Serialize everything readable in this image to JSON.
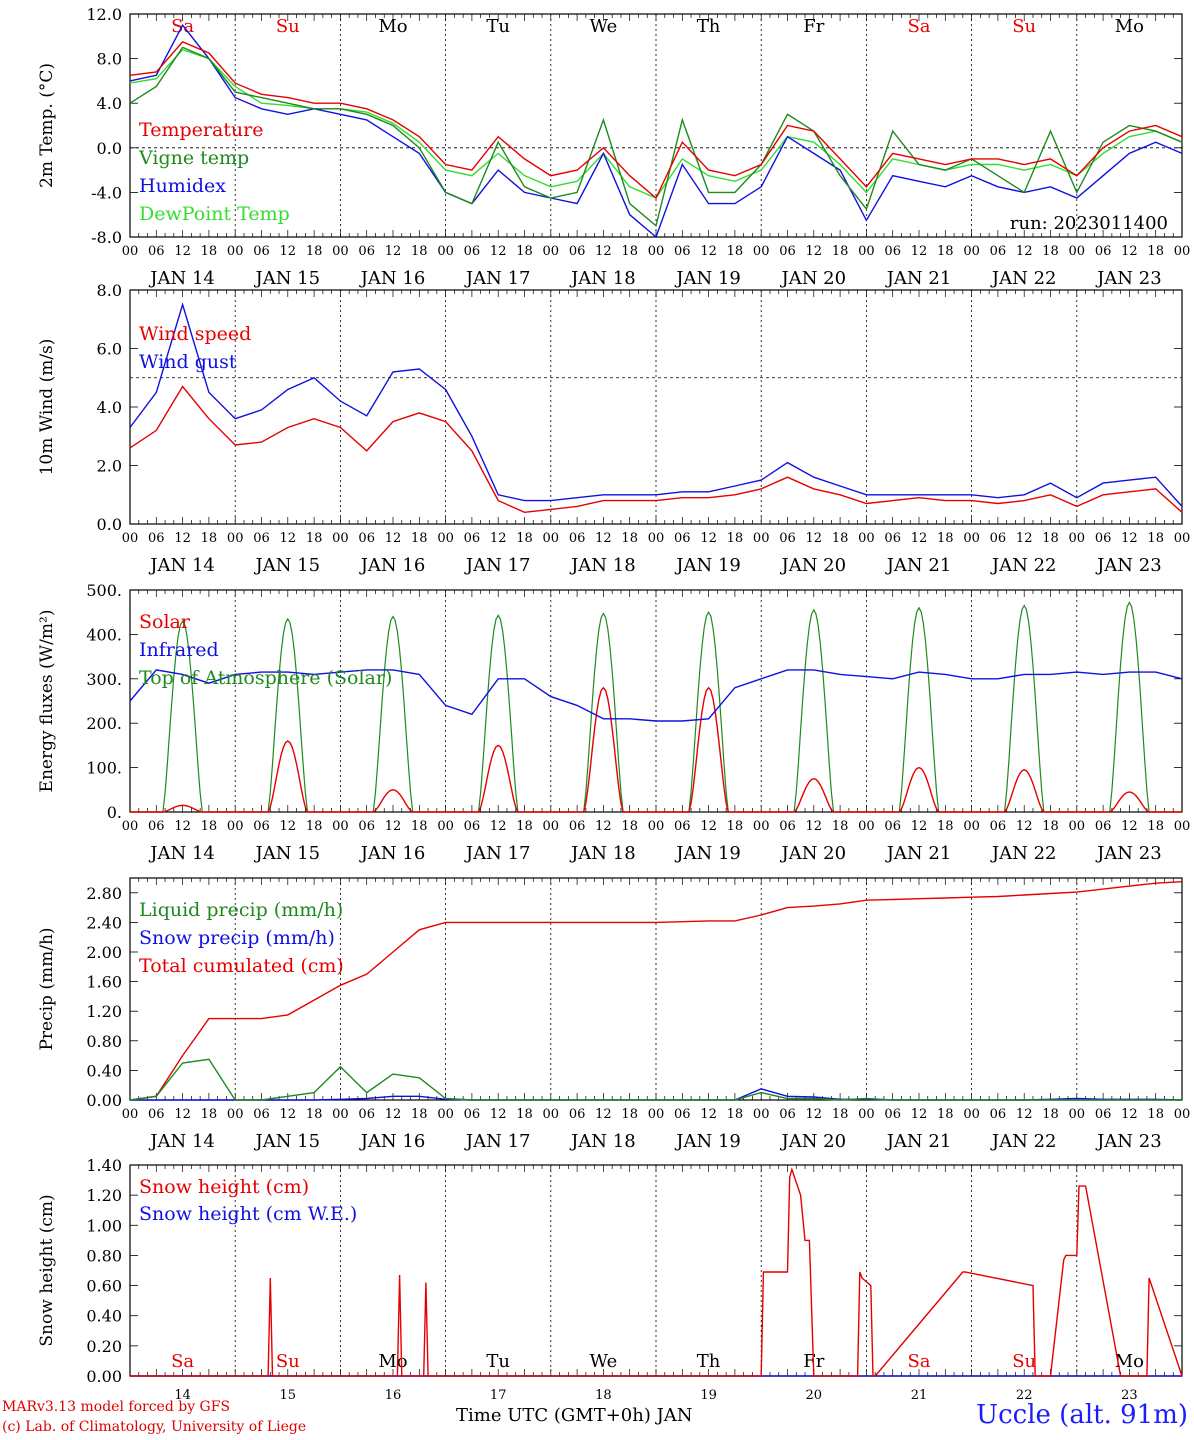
{
  "colors": {
    "red": "#e60000",
    "green": "#1e8a1e",
    "blue": "#1010e0",
    "lightgreen": "#33dd33",
    "weekend": "#e60000",
    "axis": "#000000"
  },
  "days": {
    "weekday_labels": [
      "Sa",
      "Su",
      "Mo",
      "Tu",
      "We",
      "Th",
      "Fr",
      "Sa",
      "Su",
      "Mo"
    ],
    "weekend_flags": [
      true,
      true,
      false,
      false,
      false,
      false,
      false,
      true,
      true,
      false
    ],
    "date_labels": [
      "JAN 14",
      "JAN 15",
      "JAN 16",
      "JAN 17",
      "JAN 18",
      "JAN 19",
      "JAN 20",
      "JAN 21",
      "JAN 22",
      "JAN 23"
    ],
    "hour_labels": [
      "00",
      "06",
      "12",
      "18"
    ],
    "end_hour_label": "00",
    "bottom_day_numbers": [
      "14",
      "15",
      "16",
      "17",
      "18",
      "19",
      "20",
      "21",
      "22",
      "23"
    ]
  },
  "footer": {
    "credit_line1": "MARv3.13 model forced by GFS",
    "credit_line2": "(c) Lab. of Climatology, University of Liege",
    "x_axis_title": "Time UTC (GMT+0h) JAN",
    "station": "Uccle (alt. 91m)"
  },
  "chart_data": [
    {
      "type": "line",
      "ylabel": "2m Temp. (°C)",
      "ylim": [
        -8,
        12
      ],
      "yticks": [
        "12.0",
        "8.0",
        "4.0",
        "0.0",
        "-4.0",
        "-8.0"
      ],
      "ytick_values": [
        12,
        8,
        4,
        0,
        -4,
        -8
      ],
      "hline": 0,
      "run_label": "run: 2023011400",
      "x_hours": [
        0,
        6,
        12,
        18,
        24,
        30,
        36,
        42,
        48,
        54,
        60,
        66,
        72,
        78,
        84,
        90,
        96,
        102,
        108,
        114,
        120,
        126,
        132,
        138,
        144,
        150,
        156,
        162,
        168,
        174,
        180,
        186,
        192,
        198,
        204,
        210,
        216,
        222,
        228,
        234,
        240
      ],
      "series": [
        {
          "name": "Temperature",
          "color": "#e60000",
          "values": [
            6.5,
            6.8,
            9.5,
            8.5,
            5.8,
            4.8,
            4.5,
            4.0,
            4.0,
            3.5,
            2.5,
            1.0,
            -1.5,
            -2.0,
            1.0,
            -1.0,
            -2.5,
            -2.0,
            0.0,
            -2.5,
            -4.5,
            0.5,
            -2.0,
            -2.5,
            -1.5,
            2.0,
            1.5,
            -1.0,
            -3.5,
            -0.5,
            -1.0,
            -1.5,
            -1.0,
            -1.0,
            -1.5,
            -1.0,
            -2.5,
            0.0,
            1.5,
            2.0,
            1.0
          ]
        },
        {
          "name": "Vigne temp",
          "color": "#1e8a1e",
          "values": [
            4.0,
            5.5,
            9.0,
            8.0,
            5.0,
            4.5,
            4.0,
            3.5,
            3.5,
            3.0,
            2.0,
            0.0,
            -4.0,
            -5.0,
            0.5,
            -3.5,
            -4.5,
            -4.0,
            2.5,
            -5.0,
            -7.0,
            2.5,
            -4.0,
            -4.0,
            -1.5,
            3.0,
            1.5,
            -2.5,
            -5.5,
            1.5,
            -1.5,
            -2.0,
            -1.0,
            -2.5,
            -4.0,
            1.5,
            -4.0,
            0.5,
            2.0,
            1.5,
            0.5
          ]
        },
        {
          "name": "Humidex",
          "color": "#1010e0",
          "values": [
            6.0,
            6.5,
            11.0,
            8.0,
            4.5,
            3.5,
            3.0,
            3.5,
            3.0,
            2.5,
            1.0,
            -0.5,
            -4.0,
            -5.0,
            -2.0,
            -4.0,
            -4.5,
            -5.0,
            -0.5,
            -6.0,
            -8.0,
            -1.5,
            -5.0,
            -5.0,
            -3.5,
            1.0,
            -0.5,
            -2.0,
            -6.5,
            -2.5,
            -3.0,
            -3.5,
            -2.5,
            -3.5,
            -4.0,
            -3.5,
            -4.5,
            -2.5,
            -0.5,
            0.5,
            -0.5
          ]
        },
        {
          "name": "DewPoint Temp",
          "color": "#33dd33",
          "values": [
            5.8,
            6.2,
            8.8,
            8.0,
            5.5,
            4.0,
            3.8,
            3.5,
            3.5,
            3.2,
            2.2,
            0.5,
            -2.0,
            -2.5,
            -0.5,
            -2.5,
            -3.5,
            -3.0,
            -0.5,
            -3.5,
            -4.5,
            -1.0,
            -2.5,
            -3.0,
            -2.0,
            1.0,
            0.5,
            -1.5,
            -4.0,
            -1.0,
            -1.5,
            -2.0,
            -1.5,
            -1.5,
            -2.0,
            -1.5,
            -2.5,
            -0.5,
            1.0,
            1.5,
            0.5
          ]
        }
      ]
    },
    {
      "type": "line",
      "ylabel": "10m Wind (m/s)",
      "ylim": [
        0,
        8
      ],
      "yticks": [
        "8.0",
        "6.0",
        "4.0",
        "2.0",
        "0.0"
      ],
      "ytick_values": [
        8,
        6,
        4,
        2,
        0
      ],
      "hline": 5,
      "x_hours": [
        0,
        6,
        12,
        18,
        24,
        30,
        36,
        42,
        48,
        54,
        60,
        66,
        72,
        78,
        84,
        90,
        96,
        102,
        108,
        114,
        120,
        126,
        132,
        138,
        144,
        150,
        156,
        162,
        168,
        174,
        180,
        186,
        192,
        198,
        204,
        210,
        216,
        222,
        228,
        234,
        240
      ],
      "series": [
        {
          "name": "Wind speed",
          "color": "#e60000",
          "values": [
            2.6,
            3.2,
            4.7,
            3.6,
            2.7,
            2.8,
            3.3,
            3.6,
            3.3,
            2.5,
            3.5,
            3.8,
            3.5,
            2.5,
            0.8,
            0.4,
            0.5,
            0.6,
            0.8,
            0.8,
            0.8,
            0.9,
            0.9,
            1.0,
            1.2,
            1.6,
            1.2,
            1.0,
            0.7,
            0.8,
            0.9,
            0.8,
            0.8,
            0.7,
            0.8,
            1.0,
            0.6,
            1.0,
            1.1,
            1.2,
            0.4
          ]
        },
        {
          "name": "Wind gust",
          "color": "#1010e0",
          "values": [
            3.3,
            4.5,
            7.5,
            4.5,
            3.6,
            3.9,
            4.6,
            5.0,
            4.2,
            3.7,
            5.2,
            5.3,
            4.6,
            3.0,
            1.0,
            0.8,
            0.8,
            0.9,
            1.0,
            1.0,
            1.0,
            1.1,
            1.1,
            1.3,
            1.5,
            2.1,
            1.6,
            1.3,
            1.0,
            1.0,
            1.0,
            1.0,
            1.0,
            0.9,
            1.0,
            1.4,
            0.9,
            1.4,
            1.5,
            1.6,
            0.6
          ]
        }
      ]
    },
    {
      "type": "line",
      "ylabel": "Energy fluxes (W/m²)",
      "ylim": [
        0,
        500
      ],
      "yticks": [
        "500.",
        "400.",
        "300.",
        "200.",
        "100.",
        "0."
      ],
      "ytick_values": [
        500,
        400,
        300,
        200,
        100,
        0
      ],
      "toa_daily_peak": [
        430,
        435,
        440,
        443,
        447,
        450,
        455,
        460,
        465,
        472
      ],
      "solar_daily_peak": [
        15,
        160,
        50,
        150,
        280,
        280,
        75,
        100,
        95,
        45
      ],
      "infrared_hours": [
        0,
        6,
        12,
        18,
        24,
        30,
        36,
        42,
        48,
        54,
        60,
        66,
        72,
        78,
        84,
        90,
        96,
        102,
        108,
        114,
        120,
        126,
        132,
        138,
        144,
        150,
        156,
        162,
        168,
        174,
        180,
        186,
        192,
        198,
        204,
        210,
        216,
        222,
        228,
        234,
        240
      ],
      "series": [
        {
          "name": "Solar",
          "color": "#e60000"
        },
        {
          "name": "Infrared",
          "color": "#1010e0",
          "values": [
            250,
            320,
            310,
            290,
            310,
            315,
            315,
            310,
            315,
            320,
            320,
            310,
            240,
            220,
            300,
            300,
            260,
            240,
            210,
            210,
            205,
            205,
            210,
            280,
            300,
            320,
            320,
            310,
            305,
            300,
            315,
            310,
            300,
            300,
            310,
            310,
            315,
            310,
            315,
            315,
            300
          ]
        },
        {
          "name": "Top of Atmosphere (Solar)",
          "color": "#1e8a1e"
        }
      ]
    },
    {
      "type": "line",
      "ylabel": "Precip (mm/h)",
      "ylim": [
        0,
        3.0
      ],
      "yticks": [
        "2.80",
        "2.40",
        "2.00",
        "1.60",
        "1.20",
        "0.80",
        "0.40",
        "0.00"
      ],
      "ytick_values": [
        2.8,
        2.4,
        2.0,
        1.6,
        1.2,
        0.8,
        0.4,
        0.0
      ],
      "x_hours": [
        0,
        6,
        12,
        18,
        24,
        30,
        36,
        42,
        48,
        54,
        60,
        66,
        72,
        78,
        84,
        90,
        96,
        102,
        108,
        114,
        120,
        126,
        132,
        138,
        144,
        150,
        156,
        162,
        168,
        174,
        180,
        186,
        192,
        198,
        204,
        210,
        216,
        222,
        228,
        234,
        240
      ],
      "series": [
        {
          "name": "Liquid precip (mm/h)",
          "color": "#1e8a1e",
          "values": [
            0,
            0.05,
            0.5,
            0.55,
            0,
            0,
            0.05,
            0.1,
            0.45,
            0.1,
            0.35,
            0.3,
            0.02,
            0,
            0,
            0,
            0,
            0,
            0,
            0,
            0,
            0,
            0,
            0,
            0.1,
            0.02,
            0.02,
            0,
            0.02,
            0,
            0,
            0,
            0,
            0,
            0,
            0,
            0,
            0,
            0,
            0,
            0
          ]
        },
        {
          "name": "Snow precip (mm/h)",
          "color": "#1010e0",
          "values": [
            0,
            0,
            0,
            0,
            0,
            0,
            0,
            0,
            0.01,
            0.02,
            0.05,
            0.05,
            0.01,
            0,
            0,
            0,
            0,
            0,
            0,
            0,
            0,
            0,
            0,
            0,
            0.15,
            0.05,
            0.04,
            0.01,
            0.01,
            0,
            0,
            0,
            0,
            0,
            0,
            0.01,
            0.02,
            0.01,
            0.01,
            0.01,
            0
          ]
        },
        {
          "name": "Total cumulated (cm)",
          "color": "#e60000",
          "values": [
            0,
            0.05,
            0.6,
            1.1,
            1.1,
            1.1,
            1.15,
            1.35,
            1.55,
            1.7,
            2.0,
            2.3,
            2.4,
            2.4,
            2.4,
            2.4,
            2.4,
            2.4,
            2.4,
            2.4,
            2.4,
            2.41,
            2.42,
            2.42,
            2.5,
            2.6,
            2.62,
            2.65,
            2.7,
            2.71,
            2.72,
            2.73,
            2.74,
            2.75,
            2.77,
            2.79,
            2.81,
            2.85,
            2.89,
            2.93,
            2.95
          ]
        }
      ]
    },
    {
      "type": "line",
      "ylabel": "Snow height (cm)",
      "ylim": [
        0,
        1.4
      ],
      "yticks": [
        "1.40",
        "1.20",
        "1.00",
        "0.80",
        "0.60",
        "0.40",
        "0.20",
        "0.00"
      ],
      "ytick_values": [
        1.4,
        1.2,
        1.0,
        0.8,
        0.6,
        0.4,
        0.2,
        0.0
      ],
      "x_hours": [
        0,
        24,
        31.5,
        32,
        32.5,
        48,
        61,
        61.5,
        62,
        67,
        67.5,
        68,
        96,
        120,
        144,
        144.5,
        150,
        150.5,
        151,
        153,
        154,
        155,
        156,
        166,
        166.5,
        167,
        169,
        169.5,
        170,
        190,
        190.5,
        206,
        206.5,
        207,
        210,
        213,
        213.5,
        216,
        216.5,
        218,
        226,
        226.5,
        232,
        232.5,
        240
      ],
      "series": [
        {
          "name": "Snow height (cm)",
          "color": "#e60000",
          "values": [
            0,
            0,
            0,
            0.65,
            0,
            0,
            0,
            0.67,
            0,
            0,
            0.62,
            0,
            0,
            0,
            0,
            0.69,
            0.69,
            1.32,
            1.37,
            1.2,
            0.9,
            0.9,
            0,
            0,
            0.69,
            0.65,
            0.6,
            0,
            0,
            0.69,
            0.69,
            0.6,
            0,
            0,
            0,
            0.77,
            0.8,
            0.8,
            1.26,
            1.26,
            0,
            0,
            0,
            0.65,
            0
          ]
        },
        {
          "name": "Snow height (cm W.E.)",
          "color": "#1010e0",
          "values": [
            0,
            0,
            0,
            0,
            0,
            0,
            0,
            0,
            0,
            0,
            0,
            0,
            0,
            0,
            0,
            0,
            0,
            0,
            0,
            0,
            0,
            0,
            0,
            0,
            0,
            0,
            0,
            0,
            0,
            0,
            0,
            0,
            0,
            0,
            0,
            0,
            0,
            0,
            0,
            0,
            0,
            0,
            0,
            0,
            0
          ]
        }
      ]
    }
  ]
}
